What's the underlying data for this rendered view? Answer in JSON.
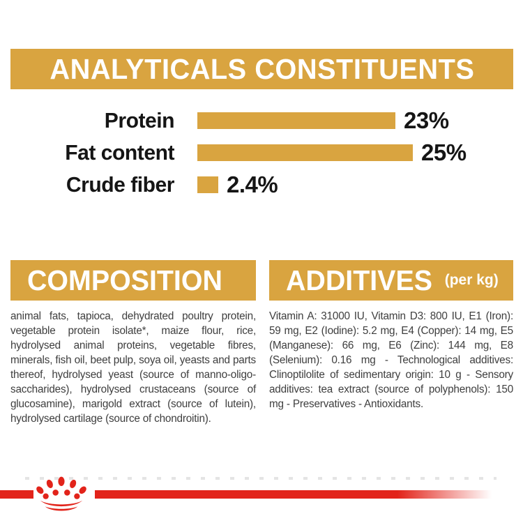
{
  "analytics": {
    "title": "ANALYTICALS CONSTITUENTS"
  },
  "chart_data": {
    "type": "bar",
    "orientation": "horizontal",
    "title": "ANALYTICALS CONSTITUENTS",
    "categories": [
      "Protein",
      "Fat content",
      "Crude fiber"
    ],
    "values": [
      23,
      25,
      2.4
    ],
    "value_labels": [
      "23%",
      "25%",
      "2.4%"
    ],
    "unit": "%",
    "xlim": [
      0,
      25
    ],
    "grid": false,
    "bar_color": "#D9A440",
    "label_color": "#151515"
  },
  "composition": {
    "title": "COMPOSITION",
    "body": "animal fats, tapioca, dehydrated poultry protein, vegetable protein isolate*, maize flour, rice, hydrolysed animal proteins, vegetable fibres, minerals, fish oil, beet pulp, soya oil, yeasts and parts thereof, hydrolysed yeast (source of manno-oligo-saccharides), hydrolysed crustaceans (source of glucosamine), marigold extract (source of lutein), hydrolysed cartilage (source of chondroitin)."
  },
  "additives": {
    "title": "ADDITIVES",
    "title_suffix": "(per kg)",
    "body": "Vitamin A: 31000 IU, Vitamin D3: 800 IU, E1 (Iron): 59 mg, E2 (Iodine): 5.2 mg, E4 (Copper): 14 mg, E5 (Manganese): 66 mg, E6 (Zinc): 144 mg, E8 (Selenium): 0.16 mg - Technological additives: Clinoptilolite of sedimentary origin: 10 g - Sensory additives: tea extract (source of polyphenols): 150 mg - Preservatives - Antioxidants."
  },
  "footer": {
    "logo_icon": "royal-canin-crown-paw-logo"
  },
  "colors": {
    "gold": "#D9A440",
    "red": "#E2231A",
    "body_text": "#3E3E3E",
    "chart_text": "#151515",
    "banner_text": "#FFFFFF"
  }
}
